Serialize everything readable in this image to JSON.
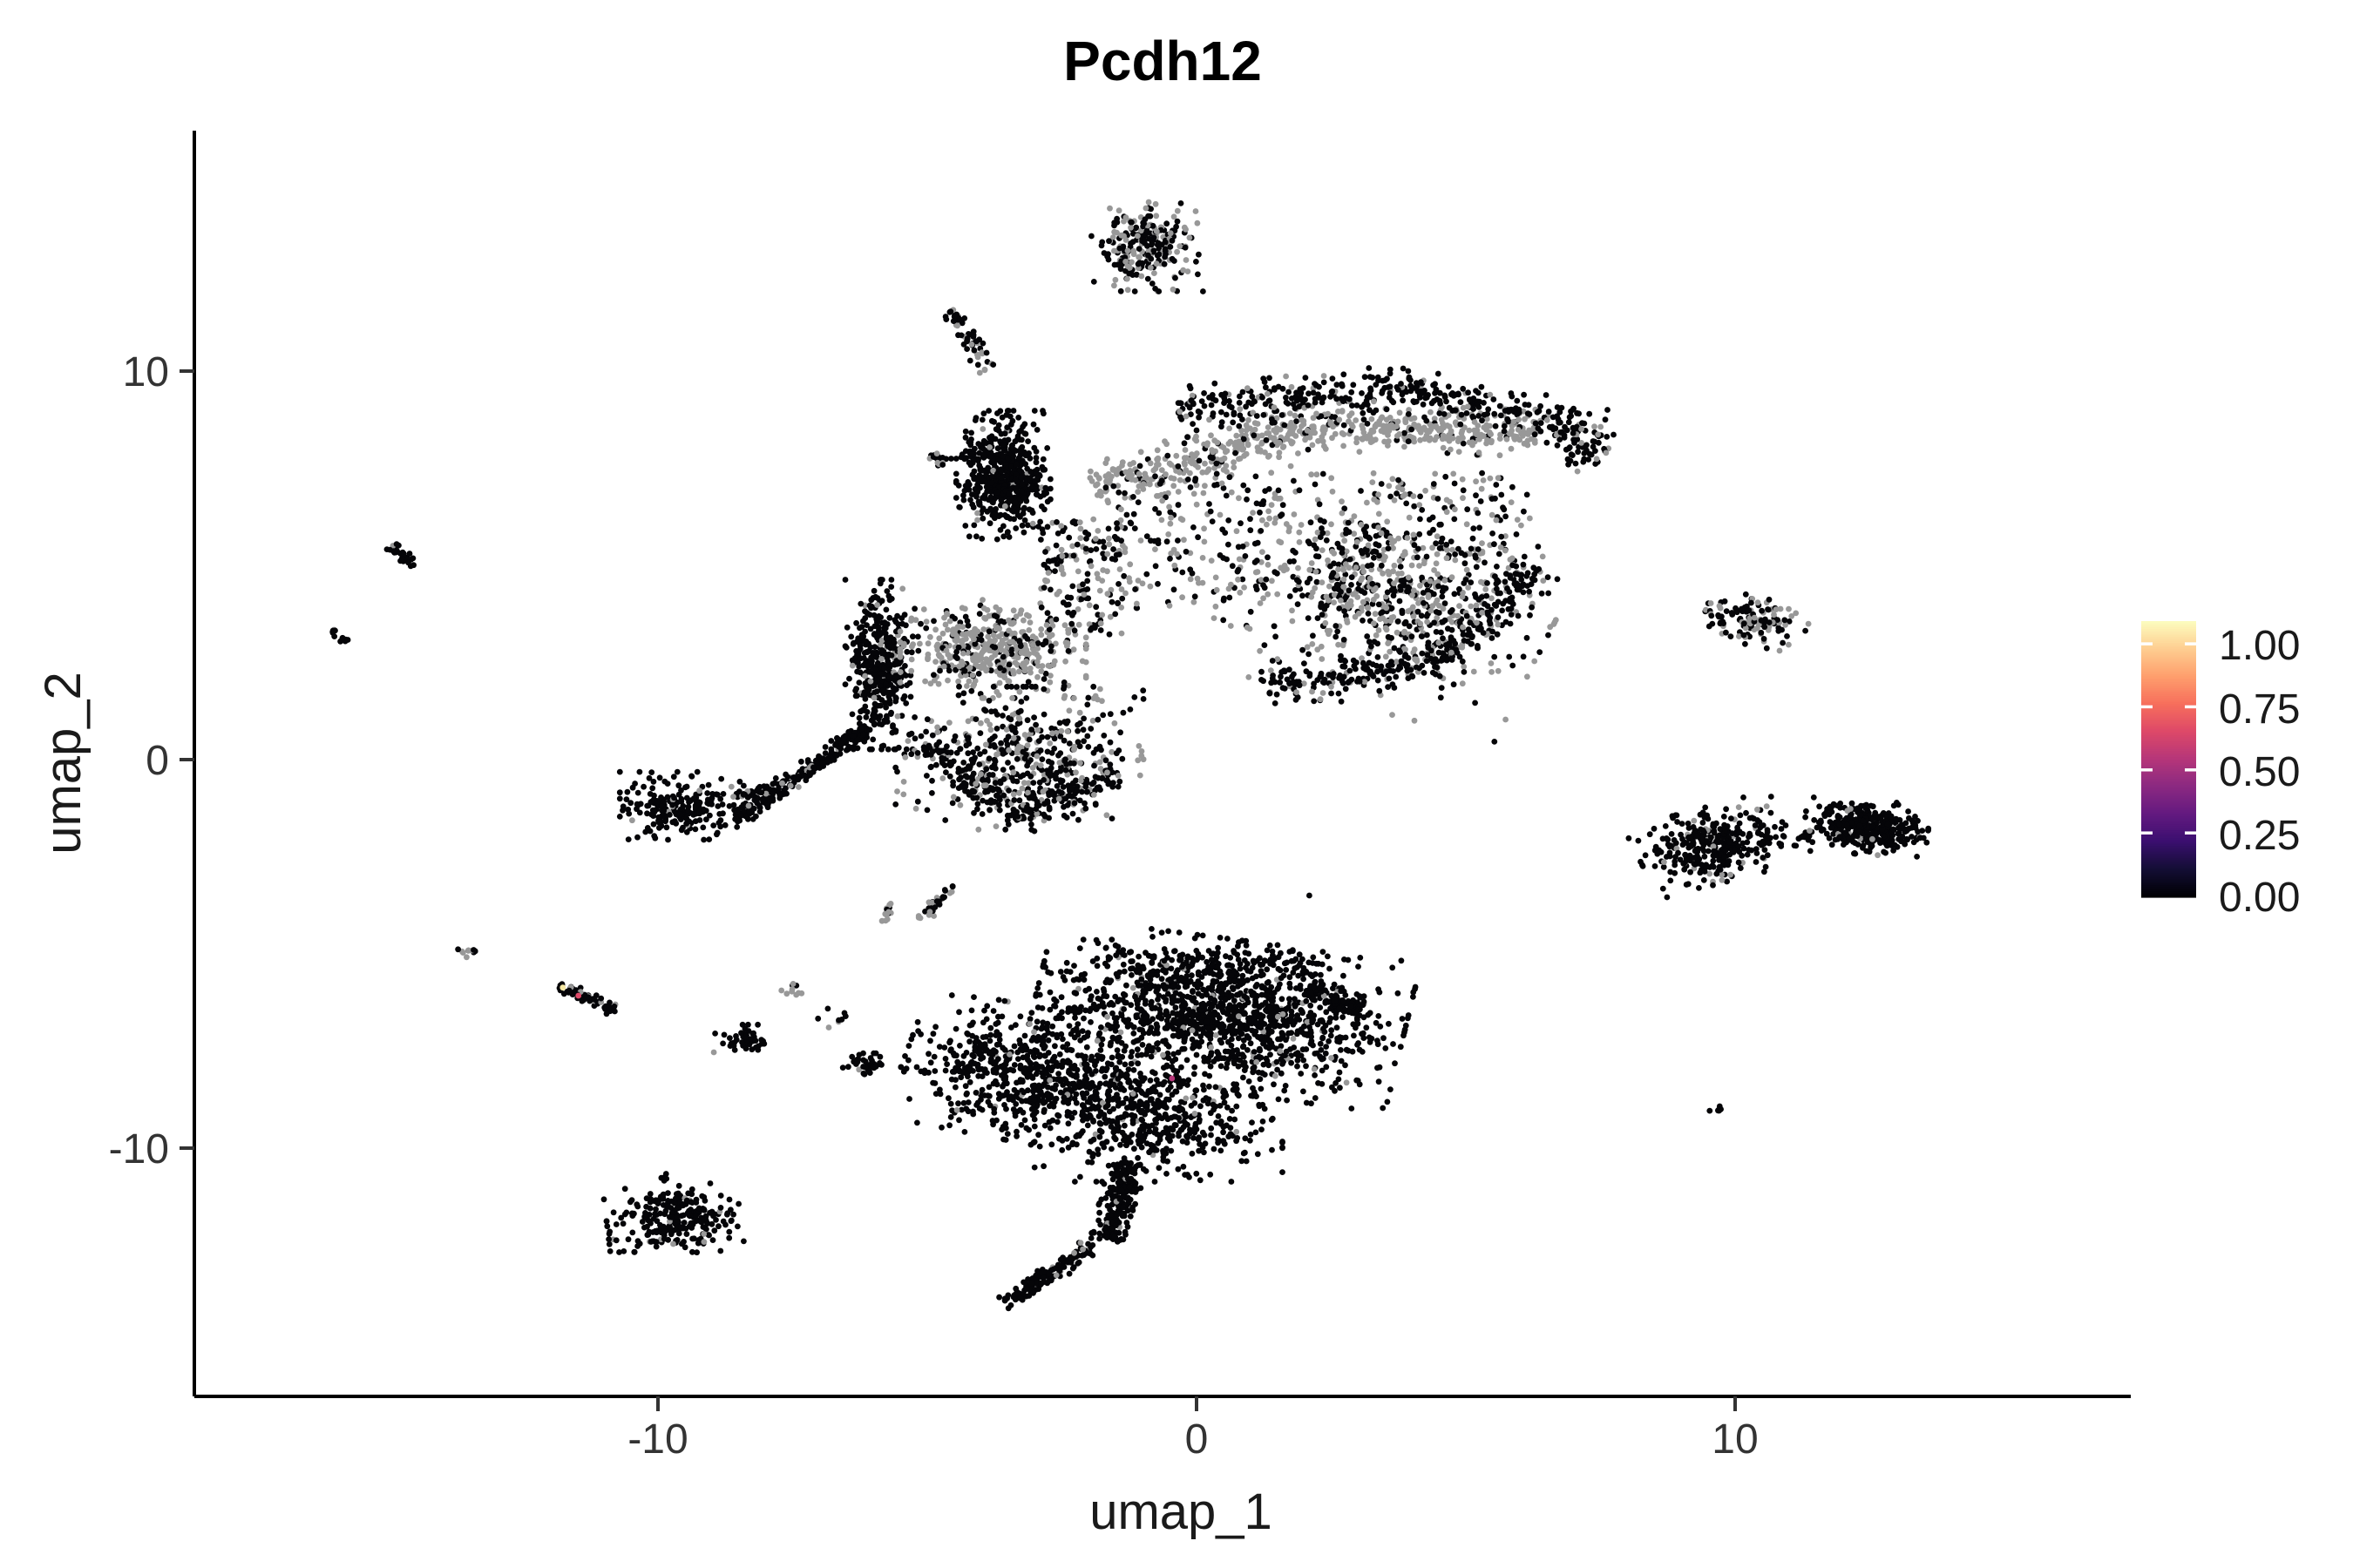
{
  "chart_data": {
    "type": "scatter",
    "title": "Pcdh12",
    "xlabel": "umap_1",
    "ylabel": "umap_2",
    "x_axis": {
      "min": -18.6,
      "max": 17.35,
      "tick_values": [
        -10,
        0,
        10
      ],
      "tick_labels": [
        "-10",
        "0",
        "10"
      ]
    },
    "y_axis": {
      "min": -16.4,
      "max": 16.2,
      "tick_values": [
        10,
        0,
        -10
      ],
      "tick_labels": [
        "10",
        "0",
        "-10"
      ]
    },
    "grid": false,
    "legend": {
      "type": "colorbar",
      "position": "right",
      "colormap": "magma",
      "tick_labels": [
        "1.00",
        "0.75",
        "0.50",
        "0.25",
        "0.00"
      ],
      "tick_values": [
        1.0,
        0.75,
        0.5,
        0.25,
        0.0
      ],
      "top_value": 1.09,
      "bottom_value": -0.005,
      "tick_color": "#ffffff",
      "gradient_stops": [
        [
          0.0,
          "#000004"
        ],
        [
          0.1,
          "#140E36"
        ],
        [
          0.2,
          "#3B0F70"
        ],
        [
          0.3,
          "#641A80"
        ],
        [
          0.4,
          "#8C2981"
        ],
        [
          0.5,
          "#B63679"
        ],
        [
          0.6,
          "#DE4968"
        ],
        [
          0.7,
          "#F76F5C"
        ],
        [
          0.8,
          "#FE9F6D"
        ],
        [
          0.9,
          "#FECE91"
        ],
        [
          1.0,
          "#FCFDBF"
        ]
      ]
    },
    "colors": {
      "expression_zero": "#050508",
      "other_cells": "#989898"
    },
    "point_radius_px": 3.4,
    "seed": 42,
    "clusters": [
      {
        "name": "top-islet",
        "shape": "gauss",
        "cx": -0.91,
        "cy": 13.21,
        "sx": 0.45,
        "sy": 0.5,
        "rot": 0,
        "n": 240,
        "grey_frac": 0.42
      },
      {
        "name": "top-trail",
        "shape": "line",
        "from": [
          -4.58,
          11.59
        ],
        "to": [
          -3.85,
          10.02
        ],
        "w": 0.18,
        "n": 55,
        "grey_frac": 0.25
      },
      {
        "name": "dense-knob",
        "shape": "gauss",
        "cx": -3.58,
        "cy": 7.33,
        "sx": 0.38,
        "sy": 0.72,
        "rot": 0,
        "n": 550,
        "grey_frac": 0.05
      },
      {
        "name": "knob-west-dash",
        "shape": "line",
        "from": [
          -4.95,
          7.89
        ],
        "to": [
          -4.66,
          7.62
        ],
        "w": 0.15,
        "n": 20,
        "grey_frac": 0.3
      },
      {
        "name": "lobe-grey-band-1",
        "shape": "line",
        "from": [
          -1.91,
          6.99
        ],
        "to": [
          2.06,
          8.57
        ],
        "w": 0.55,
        "n": 300,
        "grey_frac": 0.88
      },
      {
        "name": "lobe-grey-band-2",
        "shape": "line",
        "from": [
          2.06,
          8.57
        ],
        "to": [
          6.42,
          8.45
        ],
        "w": 0.55,
        "n": 300,
        "grey_frac": 0.88
      },
      {
        "name": "lobe-top-rim-1",
        "shape": "line",
        "from": [
          -0.37,
          9.01
        ],
        "to": [
          3.67,
          9.57
        ],
        "w": 0.5,
        "n": 200,
        "grey_frac": 0.1
      },
      {
        "name": "lobe-top-rim-2",
        "shape": "line",
        "from": [
          3.67,
          9.57
        ],
        "to": [
          6.91,
          8.68
        ],
        "w": 0.5,
        "n": 170,
        "grey_frac": 0.1
      },
      {
        "name": "lobe-nose",
        "shape": "gauss",
        "cx": 7.15,
        "cy": 8.23,
        "sx": 0.3,
        "sy": 0.35,
        "rot": 0,
        "n": 80,
        "grey_frac": 0.15
      },
      {
        "name": "lobe-interior",
        "shape": "rect",
        "x0": -1.5,
        "x1": 6.2,
        "y0": 3.9,
        "y1": 7.4,
        "n": 420,
        "grey_frac": 0.5
      },
      {
        "name": "lobe-right-dense",
        "shape": "gauss",
        "cx": 3.67,
        "cy": 4.08,
        "sx": 1.3,
        "sy": 1.2,
        "rot": -20,
        "n": 650,
        "grey_frac": 0.45
      },
      {
        "name": "lobe-bottom-rim-1",
        "shape": "line",
        "from": [
          1.25,
          1.84
        ],
        "to": [
          4.48,
          2.51
        ],
        "w": 0.45,
        "n": 150,
        "grey_frac": 0.12
      },
      {
        "name": "lobe-bottom-rim-2",
        "shape": "line",
        "from": [
          4.48,
          2.51
        ],
        "to": [
          6.26,
          4.98
        ],
        "w": 0.45,
        "n": 130,
        "grey_frac": 0.12
      },
      {
        "name": "lobe-left-sparse",
        "shape": "rect",
        "x0": -2.9,
        "x1": -1.3,
        "y0": 3.2,
        "y1": 6.2,
        "n": 160,
        "grey_frac": 0.45
      },
      {
        "name": "hook-band",
        "shape": "gauss",
        "cx": -5.87,
        "cy": 2.45,
        "sx": 0.28,
        "sy": 0.95,
        "rot": 0,
        "n": 400,
        "grey_frac": 0.04
      },
      {
        "name": "hook-arm",
        "shape": "line",
        "from": [
          -6.04,
          0.83
        ],
        "to": [
          -8.54,
          -1.52
        ],
        "w": 0.22,
        "n": 240,
        "grey_frac": 0.06
      },
      {
        "name": "west-island",
        "shape": "gauss",
        "cx": -9.55,
        "cy": -1.19,
        "sx": 0.5,
        "sy": 0.38,
        "rot": 0,
        "n": 230,
        "grey_frac": 0.04
      },
      {
        "name": "island-bridge",
        "shape": "line",
        "from": [
          -8.62,
          -0.96
        ],
        "to": [
          -7.65,
          -0.74
        ],
        "w": 0.12,
        "n": 22,
        "grey_frac": 0.15
      },
      {
        "name": "grey-blob",
        "shape": "gauss",
        "cx": -3.77,
        "cy": 2.85,
        "sx": 0.75,
        "sy": 0.55,
        "rot": 0,
        "n": 480,
        "grey_frac": 0.78
      },
      {
        "name": "mid-lower-lobe",
        "shape": "gauss",
        "cx": -3.28,
        "cy": 0.04,
        "sx": 1.0,
        "sy": 0.8,
        "rot": 0,
        "n": 450,
        "grey_frac": 0.35
      },
      {
        "name": "mid-lower-rim-1",
        "shape": "line",
        "from": [
          -4.98,
          0.38
        ],
        "to": [
          -3.28,
          -1.52
        ],
        "w": 0.4,
        "n": 120,
        "grey_frac": 0.1
      },
      {
        "name": "mid-lower-rim-2",
        "shape": "line",
        "from": [
          -3.28,
          -1.52
        ],
        "to": [
          -1.42,
          -0.29
        ],
        "w": 0.4,
        "n": 100,
        "grey_frac": 0.1
      },
      {
        "name": "mid-small-streak",
        "shape": "line",
        "from": [
          -5.11,
          -4.13
        ],
        "to": [
          -4.5,
          -3.25
        ],
        "w": 0.12,
        "n": 32,
        "grey_frac": 0.55
      },
      {
        "name": "farleft-streak-upper",
        "shape": "line",
        "from": [
          -14.98,
          5.49
        ],
        "to": [
          -14.5,
          5.04
        ],
        "w": 0.12,
        "n": 30,
        "grey_frac": 0.05
      },
      {
        "name": "farleft-dash",
        "shape": "line",
        "from": [
          -16.05,
          3.36
        ],
        "to": [
          -15.76,
          3.03
        ],
        "w": 0.1,
        "n": 13,
        "grey_frac": 0.1
      },
      {
        "name": "left-dot-pair",
        "shape": "gauss",
        "cx": -13.53,
        "cy": -4.96,
        "sx": 0.1,
        "sy": 0.08,
        "rot": 0,
        "n": 12,
        "grey_frac": 0.3
      },
      {
        "name": "left-streak",
        "shape": "line",
        "from": [
          -11.84,
          -5.78
        ],
        "to": [
          -10.79,
          -6.48
        ],
        "w": 0.13,
        "n": 65,
        "grey_frac": 0.08
      },
      {
        "name": "grey-pair",
        "shape": "gauss",
        "cx": -7.49,
        "cy": -5.94,
        "sx": 0.12,
        "sy": 0.1,
        "rot": 0,
        "n": 10,
        "grey_frac": 0.7
      },
      {
        "name": "sparse-dots",
        "shape": "rect",
        "x0": -7.1,
        "x1": -6.5,
        "y0": -6.9,
        "y1": -6.4,
        "n": 8,
        "grey_frac": 0.1
      },
      {
        "name": "small-blob-a",
        "shape": "gauss",
        "cx": -8.45,
        "cy": -7.24,
        "sx": 0.22,
        "sy": 0.18,
        "rot": 0,
        "n": 45,
        "grey_frac": 0.04
      },
      {
        "name": "small-blob-b",
        "shape": "gauss",
        "cx": -6.1,
        "cy": -7.85,
        "sx": 0.2,
        "sy": 0.16,
        "rot": 0,
        "n": 34,
        "grey_frac": 0.05
      },
      {
        "name": "grey-streak-mid",
        "shape": "line",
        "from": [
          -5.79,
          -4.17
        ],
        "to": [
          -5.66,
          -3.7
        ],
        "w": 0.08,
        "n": 13,
        "grey_frac": 0.85
      },
      {
        "name": "whale-upper-lobe",
        "shape": "gauss",
        "cx": 0.44,
        "cy": -6.57,
        "sx": 1.5,
        "sy": 0.85,
        "rot": -10,
        "n": 1250,
        "grey_frac": 0.05
      },
      {
        "name": "whale-left-wing",
        "shape": "gauss",
        "cx": -3.04,
        "cy": -8.14,
        "sx": 1.05,
        "sy": 0.75,
        "rot": -15,
        "n": 650,
        "grey_frac": 0.03
      },
      {
        "name": "whale-right-tip",
        "shape": "line",
        "from": [
          2.06,
          -5.9
        ],
        "to": [
          3.03,
          -6.46
        ],
        "w": 0.3,
        "n": 110,
        "grey_frac": 0.03
      },
      {
        "name": "whale-body-lower",
        "shape": "gauss",
        "cx": -0.7,
        "cy": -9.26,
        "sx": 1.0,
        "sy": 0.7,
        "rot": 0,
        "n": 450,
        "grey_frac": 0.03
      },
      {
        "name": "whale-tail",
        "shape": "line",
        "from": [
          -1.26,
          -10.38
        ],
        "to": [
          -1.63,
          -12.4
        ],
        "w": 0.3,
        "n": 230,
        "grey_frac": 0.03
      },
      {
        "name": "whale-tail-tip",
        "shape": "line",
        "from": [
          -1.91,
          -12.51
        ],
        "to": [
          -3.58,
          -14.08
        ],
        "w": 0.2,
        "n": 150,
        "grey_frac": 0.06
      },
      {
        "name": "whale-top-scatter",
        "shape": "rect",
        "x0": -1.7,
        "x1": 2.5,
        "y0": -5.6,
        "y1": -4.9,
        "n": 110,
        "grey_frac": 0.06
      },
      {
        "name": "bottomleft-crescent",
        "shape": "gauss",
        "cx": -9.68,
        "cy": -11.85,
        "sx": 0.55,
        "sy": 0.38,
        "rot": 5,
        "n": 260,
        "grey_frac": 0.04
      },
      {
        "name": "bottomleft-strays",
        "shape": "rect",
        "x0": -10.0,
        "x1": -9.7,
        "y0": -11.4,
        "y1": -10.4,
        "n": 10,
        "grey_frac": 0.1
      },
      {
        "name": "right-upper-islet",
        "shape": "gauss",
        "cx": 10.39,
        "cy": 3.59,
        "sx": 0.42,
        "sy": 0.28,
        "rot": -15,
        "n": 125,
        "grey_frac": 0.42
      },
      {
        "name": "right-mid-west",
        "shape": "gauss",
        "cx": 9.61,
        "cy": -2.2,
        "sx": 0.62,
        "sy": 0.42,
        "rot": 20,
        "n": 330,
        "grey_frac": 0.08
      },
      {
        "name": "right-bridge-dots",
        "shape": "line",
        "from": [
          10.55,
          -1.97
        ],
        "to": [
          11.47,
          -2.02
        ],
        "w": 0.06,
        "n": 8,
        "grey_frac": 0.0
      },
      {
        "name": "right-mid-east",
        "shape": "gauss",
        "cx": 12.44,
        "cy": -1.75,
        "sx": 0.5,
        "sy": 0.3,
        "rot": -5,
        "n": 360,
        "grey_frac": 0.06
      },
      {
        "name": "right-small-dash",
        "shape": "gauss",
        "cx": 9.69,
        "cy": -9.04,
        "sx": 0.08,
        "sy": 0.06,
        "rot": 0,
        "n": 6,
        "grey_frac": 0.0
      }
    ],
    "special_points": [
      {
        "x": -11.76,
        "y": -5.87,
        "value": 1.0,
        "color": "#F6E8A3"
      },
      {
        "x": -11.47,
        "y": -6.08,
        "value": 0.75,
        "color": "#DE4968"
      },
      {
        "x": -0.45,
        "y": -8.21,
        "value": 0.5,
        "color": "#B63679"
      }
    ],
    "stray_points": [
      {
        "x": 2.1,
        "y": -3.5,
        "color": "#050508"
      }
    ]
  }
}
